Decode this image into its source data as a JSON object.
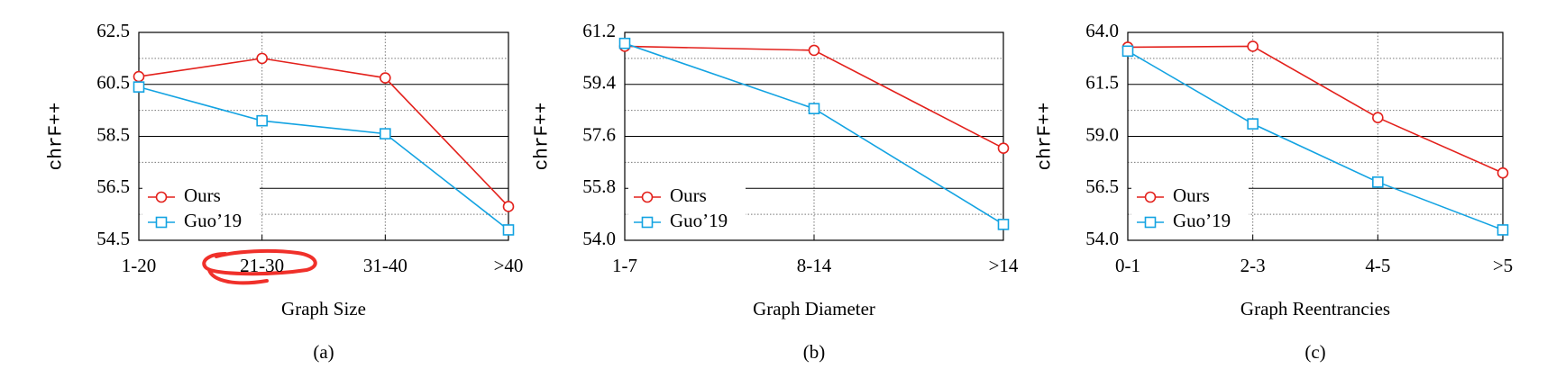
{
  "chart_data": [
    {
      "type": "line",
      "caption": "(a)",
      "x_label": "Graph Size",
      "y_label": "chrF++",
      "categories": [
        "1-20",
        "21-30",
        "31-40",
        ">40"
      ],
      "series": [
        {
          "name": "Ours",
          "color": "#e3211c",
          "marker": "circle",
          "values": [
            60.8,
            61.5,
            60.75,
            55.8
          ]
        },
        {
          "name": "Guo’19",
          "color": "#13a3e2",
          "marker": "square",
          "values": [
            60.4,
            59.1,
            58.6,
            54.9
          ]
        }
      ],
      "ylim": [
        54.5,
        62.5
      ],
      "yticks": [
        54.5,
        56.5,
        58.5,
        60.5,
        62.5
      ],
      "minor_yticks": [
        55.5,
        57.5,
        59.5,
        61.5
      ],
      "grid": true,
      "legend": "lower-left"
    },
    {
      "type": "line",
      "caption": "(b)",
      "x_label": "Graph Diameter",
      "y_label": "chrF++",
      "categories": [
        "1-7",
        "8-14",
        ">14"
      ],
      "series": [
        {
          "name": "Ours",
          "color": "#e3211c",
          "marker": "circle",
          "values": [
            60.72,
            60.58,
            57.19
          ]
        },
        {
          "name": "Guo’19",
          "color": "#13a3e2",
          "marker": "square",
          "values": [
            60.82,
            58.56,
            54.55
          ]
        }
      ],
      "ylim": [
        54,
        61.2
      ],
      "yticks": [
        {
          "value": 54,
          "label": "54.0"
        },
        55.8,
        57.6,
        59.4,
        61.2
      ],
      "minor_yticks": [
        54.9,
        56.7,
        58.5,
        60.3
      ],
      "grid": true,
      "legend": "lower-left"
    },
    {
      "type": "line",
      "caption": "(c)",
      "x_label": "Graph Reentrancies",
      "y_label": "chrF++",
      "categories": [
        "0-1",
        "2-3",
        "4-5",
        ">5"
      ],
      "series": [
        {
          "name": "Ours",
          "color": "#e3211c",
          "marker": "circle",
          "values": [
            63.29,
            63.33,
            59.9,
            57.24
          ]
        },
        {
          "name": "Guo’19",
          "color": "#13a3e2",
          "marker": "square",
          "values": [
            63.1,
            59.6,
            56.8,
            54.5
          ]
        }
      ],
      "ylim": [
        54,
        64
      ],
      "yticks": [
        {
          "value": 54,
          "label": "54.0"
        },
        56.5,
        {
          "value": 59,
          "label": "59.0"
        },
        61.5,
        {
          "value": 64,
          "label": "64.0"
        }
      ],
      "minor_yticks": [
        55.25,
        57.75,
        60.25,
        62.75
      ],
      "grid": true,
      "legend": "lower-left"
    }
  ]
}
